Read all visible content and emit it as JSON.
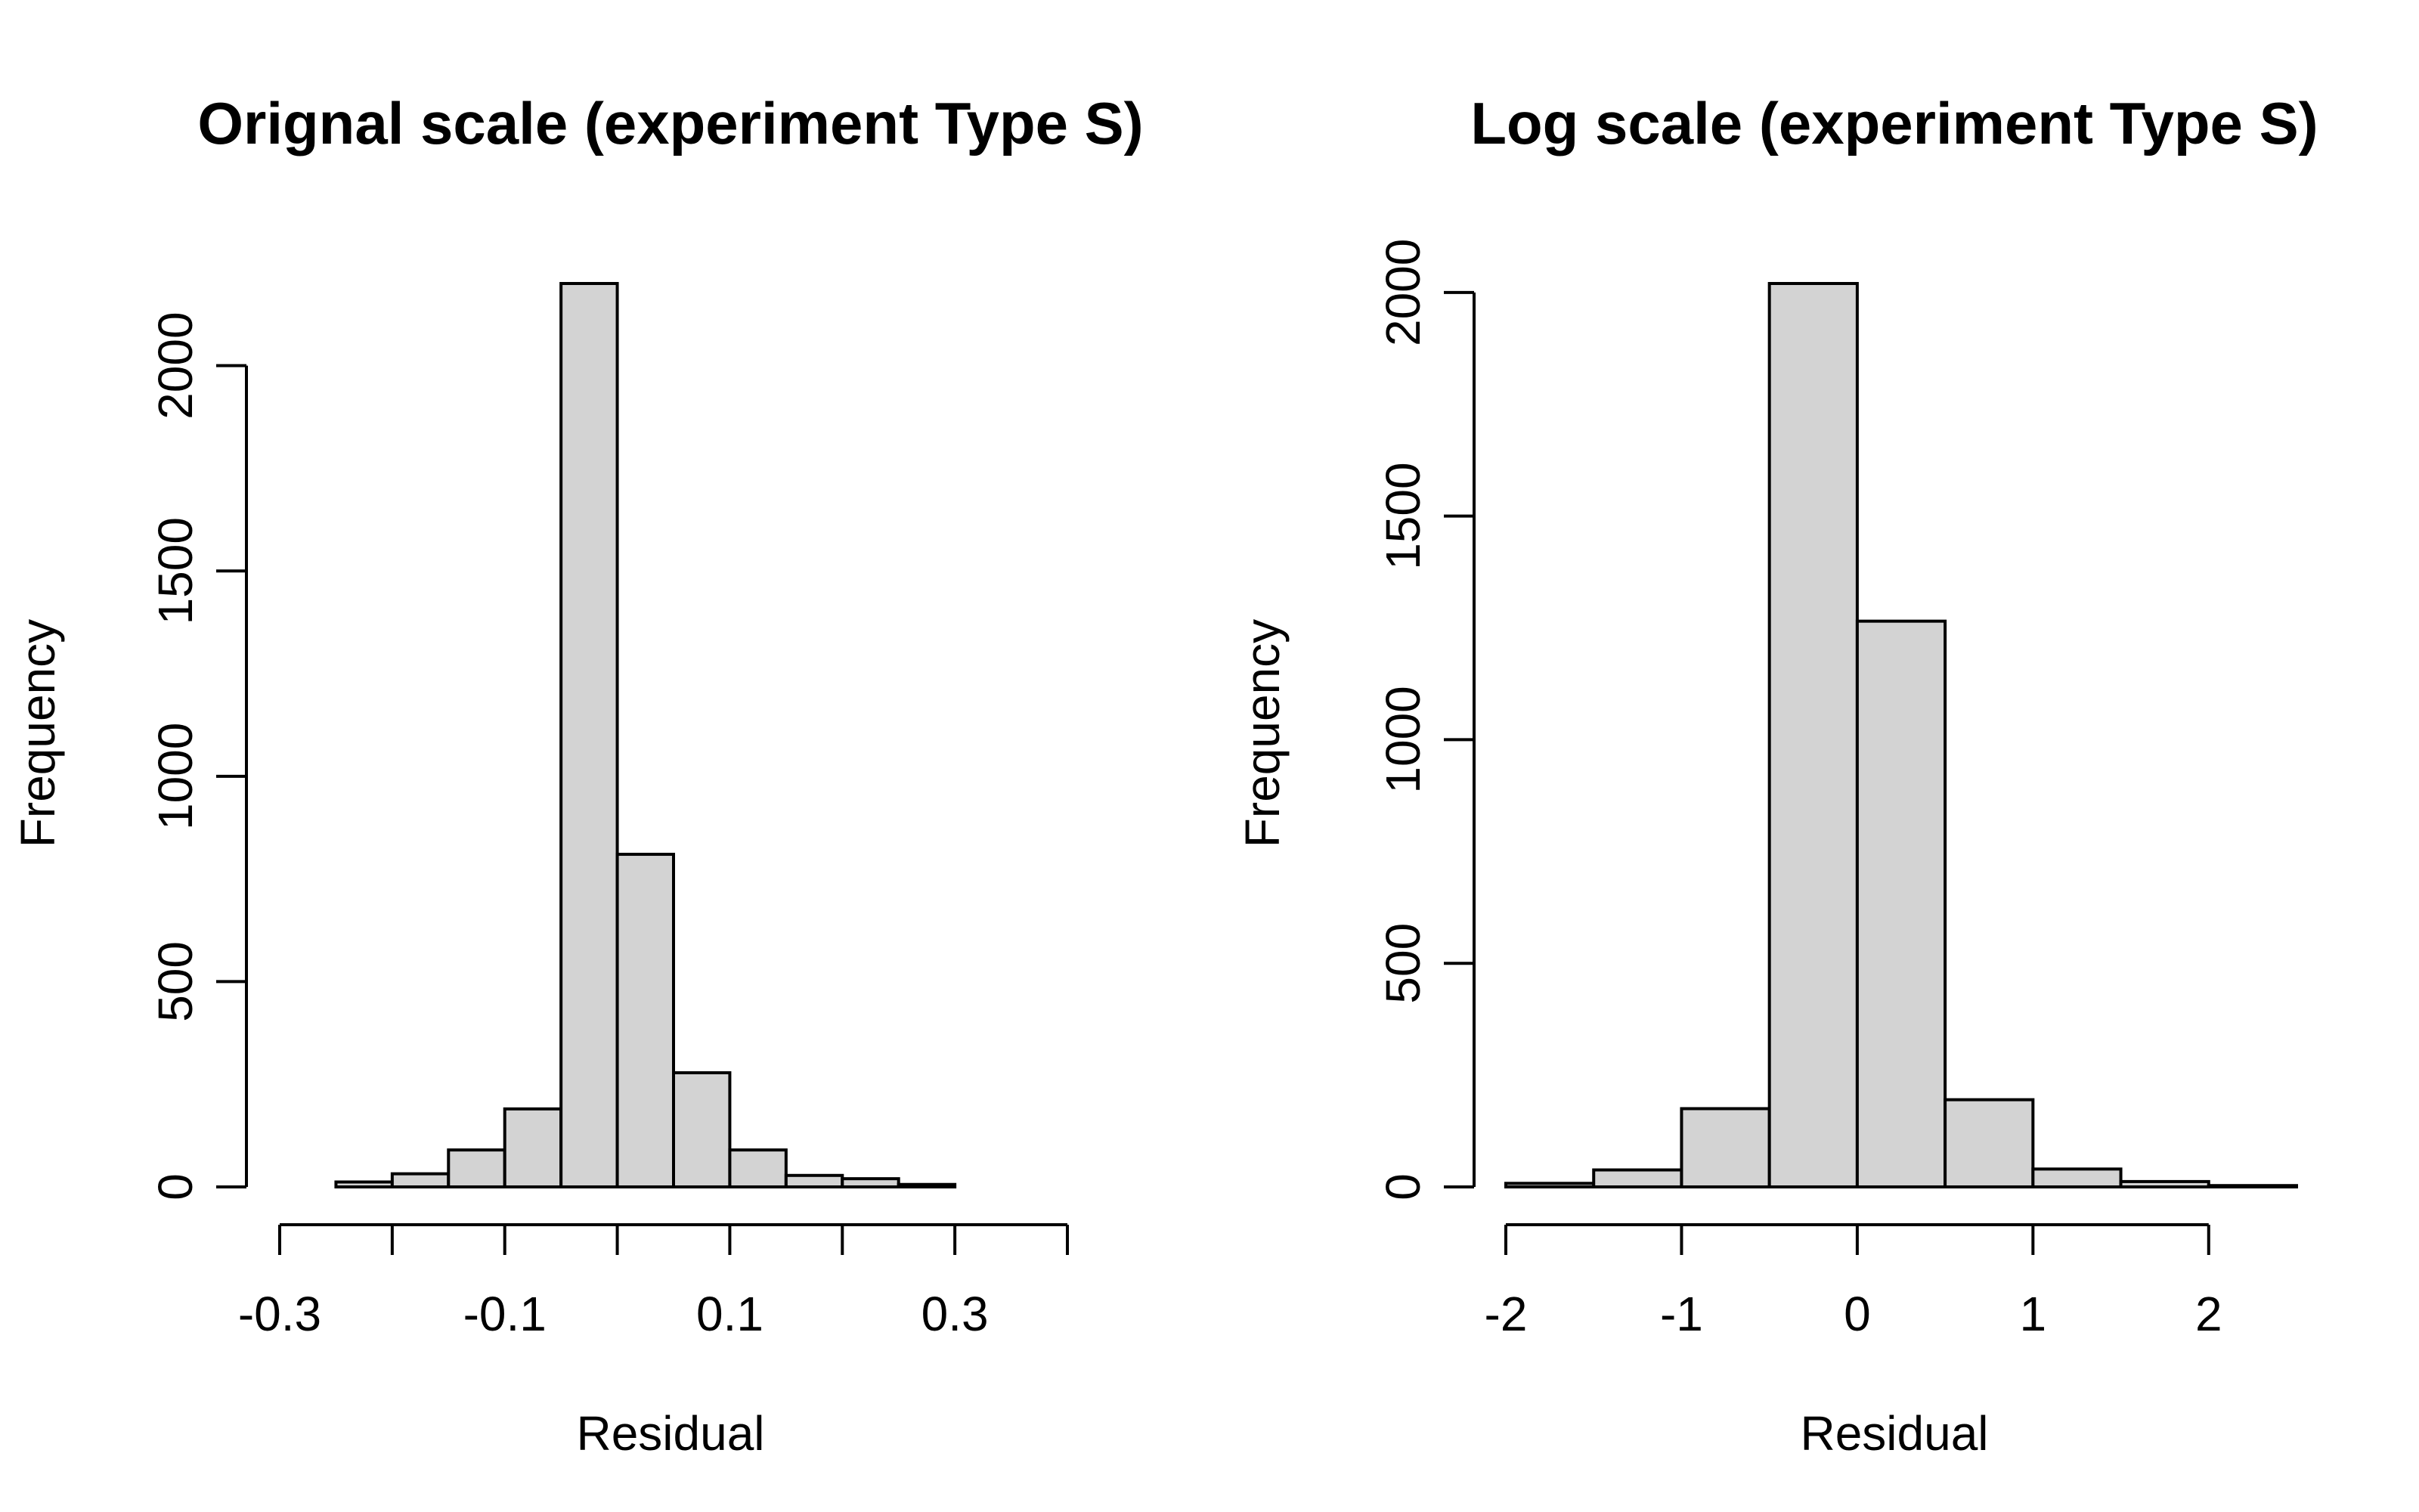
{
  "chart_data": [
    {
      "type": "bar",
      "title": "Orignal scale (experiment Type S)",
      "xlabel": "Residual",
      "ylabel": "Frequency",
      "bin_edges": [
        -0.3,
        -0.25,
        -0.2,
        -0.15,
        -0.1,
        -0.05,
        0.0,
        0.05,
        0.1,
        0.15,
        0.2,
        0.25,
        0.3,
        0.35,
        0.4
      ],
      "values": [
        0,
        12,
        32,
        90,
        190,
        2200,
        810,
        278,
        90,
        28,
        20,
        6,
        0,
        0
      ],
      "xlim": [
        -0.3,
        0.4
      ],
      "ylim": [
        0,
        2200
      ],
      "xticks": [
        -0.3,
        -0.2,
        -0.1,
        0.0,
        0.1,
        0.2,
        0.3,
        0.4
      ],
      "xtick_labels": [
        "-0.3",
        "",
        "-0.1",
        "",
        "0.1",
        "",
        "0.3",
        ""
      ],
      "yticks": [
        0,
        500,
        1000,
        1500,
        2000
      ],
      "ytick_labels": [
        "0",
        "500",
        "1000",
        "1500",
        "2000"
      ],
      "bar_color": "#d3d3d3"
    },
    {
      "type": "bar",
      "title": "Log scale (experiment Type S)",
      "xlabel": "Residual",
      "ylabel": "Frequency",
      "bin_edges": [
        -2.0,
        -1.5,
        -1.0,
        -0.5,
        0.0,
        0.5,
        1.0,
        1.5,
        2.0,
        2.5
      ],
      "values": [
        8,
        38,
        175,
        2020,
        1265,
        195,
        40,
        12,
        3
      ],
      "xlim": [
        -2.0,
        2.5
      ],
      "ylim": [
        0,
        2020
      ],
      "xticks": [
        -2,
        -1,
        0,
        1,
        2
      ],
      "xtick_labels": [
        "-2",
        "-1",
        "0",
        "1",
        "2"
      ],
      "yticks": [
        0,
        500,
        1000,
        1500,
        2000
      ],
      "ytick_labels": [
        "0",
        "500",
        "1000",
        "1500",
        "2000"
      ],
      "bar_color": "#d3d3d3"
    }
  ]
}
